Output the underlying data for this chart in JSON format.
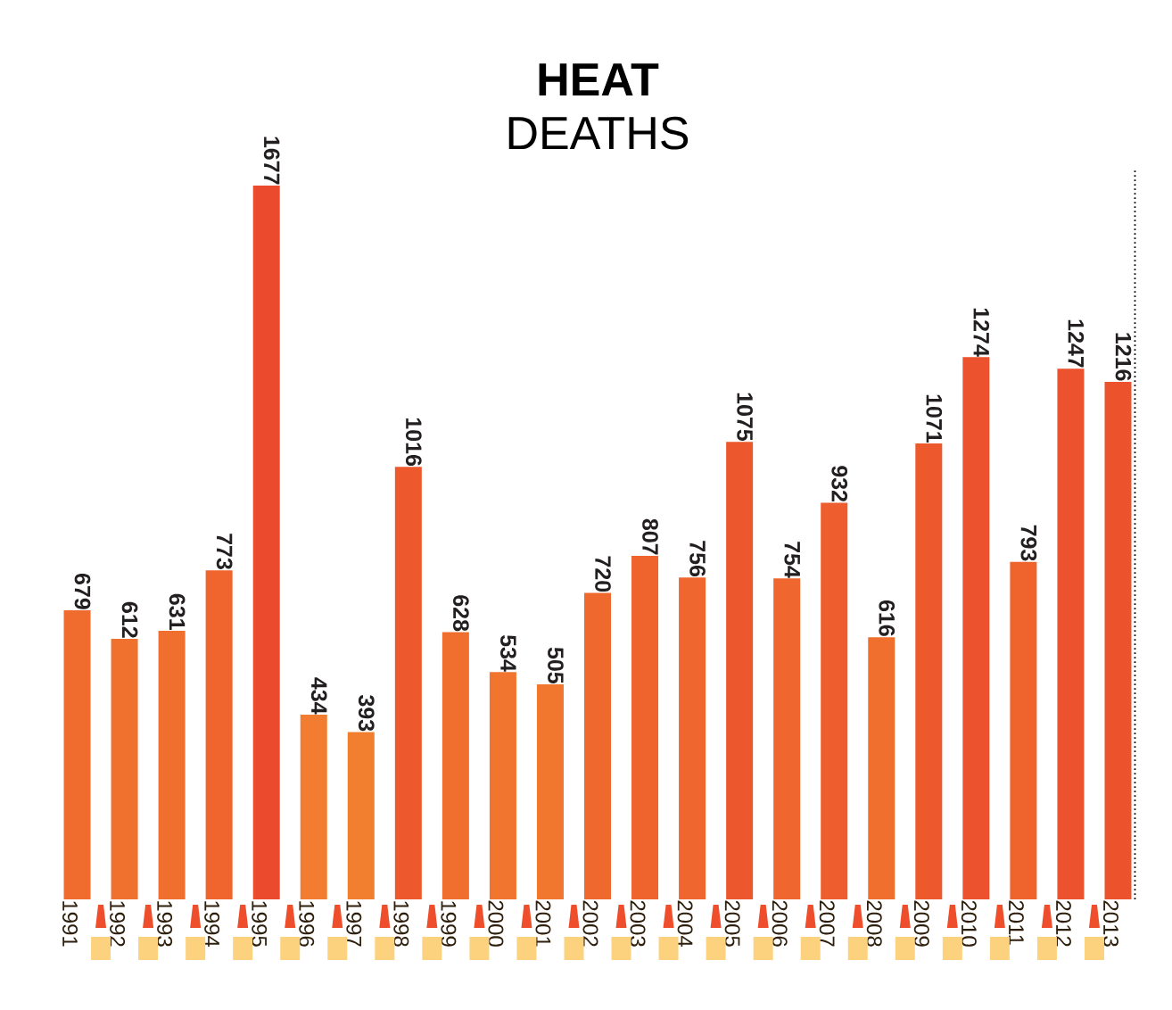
{
  "chart_data": {
    "type": "bar",
    "title": "**HEAT** DEATHS",
    "categories": [
      "1991",
      "1992",
      "1993",
      "1994",
      "1995",
      "1996",
      "1997",
      "1998",
      "1999",
      "2000",
      "2001",
      "2002",
      "2003",
      "2004",
      "2005",
      "2006",
      "2007",
      "2008",
      "2009",
      "2010",
      "2011",
      "2012",
      "2013"
    ],
    "values": [
      679,
      612,
      631,
      773,
      1677,
      434,
      393,
      1016,
      628,
      534,
      505,
      720,
      807,
      756,
      1075,
      754,
      932,
      616,
      1071,
      1274,
      793,
      1247,
      1216
    ],
    "colors": [
      "#f06b2e",
      "#f0702e",
      "#f06f2e",
      "#ef652d",
      "#eb4b2c",
      "#f27c2f",
      "#f27e2f",
      "#ed592d",
      "#f06f2e",
      "#f1752e",
      "#f1772e",
      "#ef692e",
      "#ef632d",
      "#ef672e",
      "#ed572d",
      "#ef672e",
      "#ee5d2d",
      "#f06f2e",
      "#ed582d",
      "#ec522d",
      "#ef642d",
      "#ec522d",
      "#ec532d"
    ],
    "data_labels": true
  }
}
